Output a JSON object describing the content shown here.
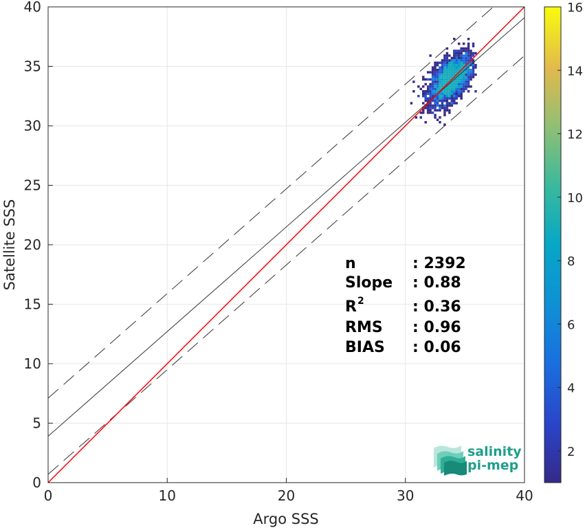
{
  "chart_data": {
    "type": "heatmap",
    "title": "",
    "xlabel": "Argo SSS",
    "ylabel": "Satellite SSS",
    "xlim": [
      0,
      40
    ],
    "ylim": [
      0,
      40
    ],
    "x_ticks": [
      "0",
      "10",
      "20",
      "30",
      "40"
    ],
    "y_ticks": [
      "0",
      "5",
      "10",
      "15",
      "20",
      "25",
      "30",
      "35",
      "40"
    ],
    "grid": true,
    "colorbar": {
      "range": [
        1,
        16
      ],
      "ticks": [
        "2",
        "4",
        "6",
        "8",
        "10",
        "12",
        "14",
        "16"
      ],
      "colormap": "parula"
    },
    "density_cluster": {
      "center_x": 33.8,
      "center_y": 33.9,
      "spread_x": 0.9,
      "spread_y": 1.05,
      "x_range": [
        30.3,
        35.9
      ],
      "y_range": [
        28.3,
        37.5
      ],
      "peak_count": 9
    },
    "lines": {
      "identity": {
        "slope": 1,
        "intercept": 0,
        "color": "#ff0000"
      },
      "fit": {
        "slope": 0.88,
        "intercept": 3.9,
        "color": "#333333"
      },
      "upper_bound": {
        "slope": 0.88,
        "intercept": 7.1,
        "style": "dashed"
      },
      "lower_bound": {
        "slope": 0.88,
        "intercept": 0.7,
        "style": "dashed"
      }
    },
    "stats": [
      {
        "label": "n",
        "sup": "",
        "value": ": 2392"
      },
      {
        "label": "Slope",
        "sup": "",
        "value": ": 0.88"
      },
      {
        "label": "R",
        "sup": "2",
        "value": ": 0.36"
      },
      {
        "label": "RMS",
        "sup": "",
        "value": ": 0.96"
      },
      {
        "label": "BIAS",
        "sup": "",
        "value": ": 0.06"
      }
    ]
  },
  "logo": {
    "line1": "salinity",
    "line2": "pi-mep"
  }
}
